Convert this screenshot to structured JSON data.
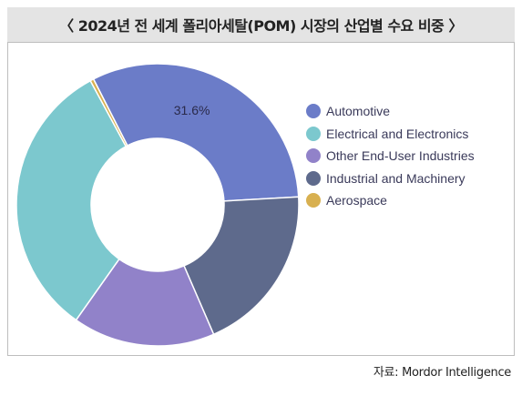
{
  "header": {
    "title": "〈 2024년 전 세계 폴리아세탈(POM) 시장의 산업별 수요 비중 〉"
  },
  "source": "자료: Mordor Intelligence",
  "chart_data": {
    "type": "pie",
    "donut": true,
    "title": "〈 2024년 전 세계 폴리아세탈(POM) 시장의 산업별 수요 비중 〉",
    "legend_position": "right",
    "series": [
      {
        "name": "Automotive",
        "value": 31.6,
        "color": "#6b7cc8",
        "label": "31.6%"
      },
      {
        "name": "Industrial and Machinery",
        "value": 19.4,
        "color": "#5e6a8c"
      },
      {
        "name": "Other End-User Industries",
        "value": 16.3,
        "color": "#9182c9"
      },
      {
        "name": "Electrical and Electronics",
        "value": 32.3,
        "color": "#7cc8ce"
      },
      {
        "name": "Aerospace",
        "value": 0.4,
        "color": "#d8b050"
      }
    ],
    "legend": [
      {
        "name": "Automotive",
        "color": "#6b7cc8"
      },
      {
        "name": "Electrical and Electronics",
        "color": "#7cc8ce"
      },
      {
        "name": "Other End-User Industries",
        "color": "#9182c9"
      },
      {
        "name": "Industrial and Machinery",
        "color": "#5e6a8c"
      },
      {
        "name": "Aerospace",
        "color": "#d8b050"
      }
    ]
  }
}
